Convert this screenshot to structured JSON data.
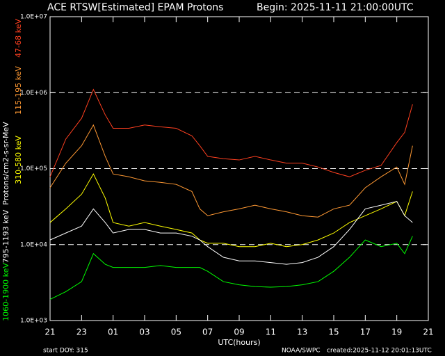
{
  "chart_data": {
    "type": "line",
    "title": "ACE RTSW[Estimated] EPAM Protons",
    "subtitle": "Begin: 2025-11-11 21:00:00UTC",
    "x_label": "UTC(hours)",
    "y_label": "Protons/cm2-s-sr-MeV",
    "footer": {
      "left": "start DOY:  315",
      "center": "NOAA/SWPC",
      "right": "created:2025-11-12 20:01:13UTC"
    },
    "y_scale": "log",
    "grid": true,
    "xlim": [
      0,
      24
    ],
    "xticks": [
      {
        "value": 0,
        "label": "21"
      },
      {
        "value": 2,
        "label": "23"
      },
      {
        "value": 4,
        "label": "01"
      },
      {
        "value": 6,
        "label": "03"
      },
      {
        "value": 8,
        "label": "05"
      },
      {
        "value": 10,
        "label": "07"
      },
      {
        "value": 12,
        "label": "09"
      },
      {
        "value": 14,
        "label": "11"
      },
      {
        "value": 16,
        "label": "13"
      },
      {
        "value": 18,
        "label": "15"
      },
      {
        "value": 20,
        "label": "17"
      },
      {
        "value": 22,
        "label": "19"
      },
      {
        "value": 24,
        "label": "21"
      }
    ],
    "ylim": [
      1000,
      10000000
    ],
    "yticks": [
      {
        "value": 1000,
        "label": "1.0E+03"
      },
      {
        "value": 10000,
        "label": "1.0E+04"
      },
      {
        "value": 100000,
        "label": "1.0E+05"
      },
      {
        "value": 1000000,
        "label": "1.0E+06"
      },
      {
        "value": 10000000,
        "label": "1.0E+07"
      }
    ],
    "x": [
      0,
      1,
      2,
      2.75,
      3.5,
      4,
      5,
      6,
      7,
      8,
      9,
      9.5,
      10,
      11,
      12,
      13,
      14,
      15,
      16,
      17,
      18,
      19,
      20,
      21,
      22,
      22.5,
      23
    ],
    "series": [
      {
        "name": "47-68 keV",
        "color": "#ff4020",
        "values": [
          78000,
          245000,
          460000,
          1100000,
          510000,
          340000,
          340000,
          375000,
          355000,
          340000,
          270000,
          200000,
          145000,
          135000,
          130000,
          145000,
          130000,
          118000,
          118000,
          105000,
          89000,
          78000,
          95000,
          110000,
          220000,
          300000,
          700000
        ]
      },
      {
        "name": "115-195 keV",
        "color": "#ff9933",
        "values": [
          56000,
          118000,
          200000,
          375000,
          145000,
          85000,
          78000,
          69000,
          66000,
          62000,
          50000,
          29500,
          24000,
          27000,
          29500,
          33000,
          29500,
          27000,
          24000,
          23000,
          29500,
          33000,
          56000,
          78000,
          105000,
          62000,
          200000
        ]
      },
      {
        "name": "310-580 keV",
        "color": "#ffff00",
        "values": [
          19500,
          29500,
          46000,
          85000,
          41000,
          19500,
          17500,
          19500,
          17500,
          15800,
          14200,
          11500,
          10400,
          10400,
          9400,
          9400,
          10400,
          9400,
          10000,
          11500,
          14200,
          19500,
          24000,
          29500,
          37000,
          24000,
          50000
        ]
      },
      {
        "name": "795-1193 keV",
        "color": "#ffffff",
        "values": [
          11500,
          14200,
          17500,
          29500,
          19500,
          14200,
          15800,
          15800,
          14200,
          14200,
          12900,
          11500,
          9400,
          6800,
          6100,
          6100,
          5800,
          5500,
          5800,
          6800,
          9400,
          15800,
          29500,
          33000,
          37000,
          24000,
          19500
        ]
      },
      {
        "name": "1060-1900 keV",
        "color": "#00ff00",
        "values": [
          1900,
          2400,
          3250,
          7600,
          5500,
          5000,
          5000,
          5000,
          5300,
          5000,
          5000,
          5000,
          4450,
          3250,
          2950,
          2800,
          2750,
          2800,
          2950,
          3250,
          4450,
          6800,
          11500,
          9400,
          10400,
          7600,
          12900
        ]
      }
    ]
  }
}
